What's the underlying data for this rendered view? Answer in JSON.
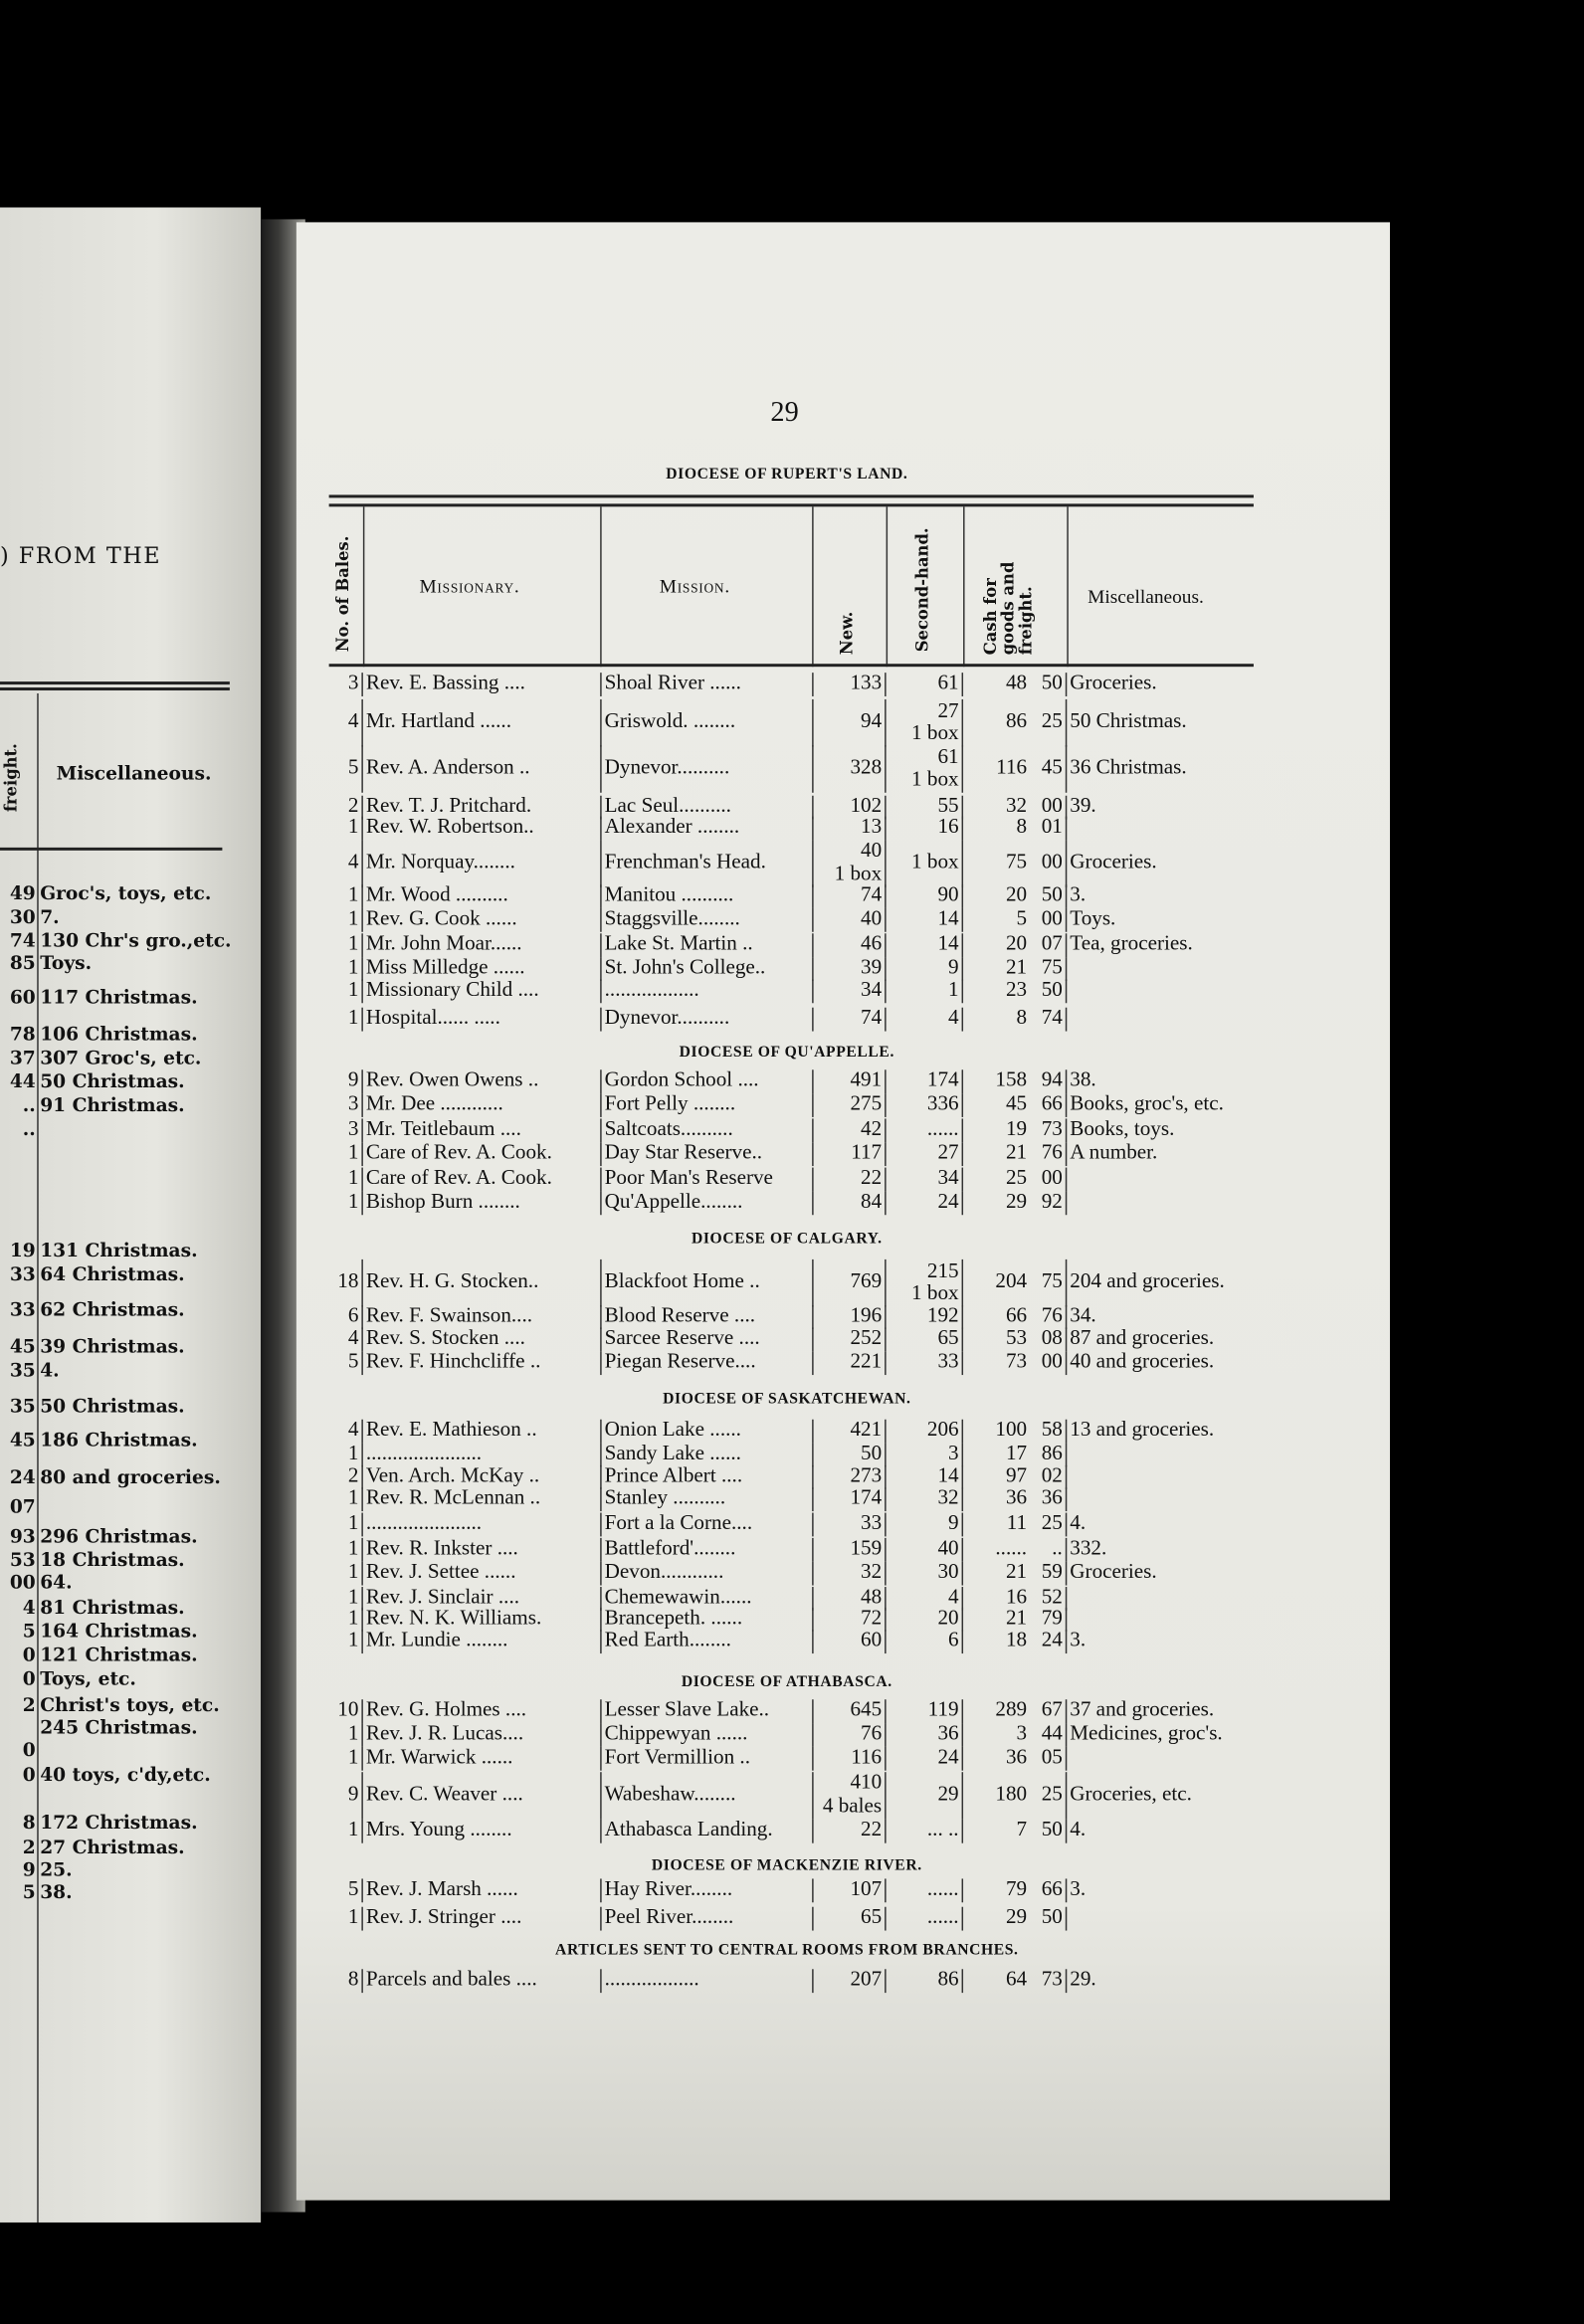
{
  "left_page": {
    "heading_fragment": ") FROM THE",
    "col_freight": "freight.",
    "col_misc": "Miscellaneous.",
    "rows": [
      {
        "v": "49",
        "m": "Groc's, toys, etc."
      },
      {
        "v": "30",
        "m": "7."
      },
      {
        "v": "74",
        "m": "130 Chr's gro.,etc."
      },
      {
        "v": "85",
        "m": "Toys."
      },
      {
        "v": "60",
        "m": "117 Christmas."
      },
      {
        "v": "78",
        "m": "106 Christmas."
      },
      {
        "v": "37",
        "m": "307 Groc's, etc."
      },
      {
        "v": "44",
        "m": "50 Christmas."
      },
      {
        "v": "..",
        "m": "91 Christmas."
      },
      {
        "v": "..",
        "m": ""
      },
      {
        "v": "19",
        "m": "131 Christmas."
      },
      {
        "v": "33",
        "m": "64 Christmas."
      },
      {
        "v": "33",
        "m": "62 Christmas."
      },
      {
        "v": "45",
        "m": "39 Christmas."
      },
      {
        "v": "35",
        "m": "4."
      },
      {
        "v": "35",
        "m": "50 Christmas."
      },
      {
        "v": "45",
        "m": "186 Christmas."
      },
      {
        "v": "24",
        "m": "80 and groceries."
      },
      {
        "v": "07",
        "m": ""
      },
      {
        "v": "93",
        "m": "296 Christmas."
      },
      {
        "v": "53",
        "m": "18 Christmas."
      },
      {
        "v": "00",
        "m": "64."
      },
      {
        "v": "4",
        "m": "81 Christmas."
      },
      {
        "v": "5",
        "m": "164 Christmas."
      },
      {
        "v": "0",
        "m": "121 Christmas."
      },
      {
        "v": "0",
        "m": "Toys, etc."
      },
      {
        "v": "2",
        "m": "Christ's toys, etc."
      },
      {
        "v": "",
        "m": "245 Christmas."
      },
      {
        "v": "0",
        "m": ""
      },
      {
        "v": "0",
        "m": "40 toys, c'dy,etc."
      },
      {
        "v": "8",
        "m": "172 Christmas."
      },
      {
        "v": "2",
        "m": "27 Christmas."
      },
      {
        "v": "9",
        "m": "25."
      },
      {
        "v": "5",
        "m": "38."
      }
    ]
  },
  "right_page": {
    "page_number": "29",
    "columns": {
      "bales": "No. of Bales.",
      "missionary": "Missionary.",
      "mission": "Mission.",
      "new": "New.",
      "second_hand": "Second-hand.",
      "cash": "Cash for goods and freight.",
      "misc": "Miscellaneous."
    },
    "sections": [
      {
        "title": "DIOCESE OF RUPERT'S LAND.",
        "rows": [
          {
            "no": "3",
            "missionary": "Rev. E. Bassing ....",
            "mission": "Shoal River ......",
            "new": "133",
            "second": "61",
            "dollars": "48",
            "cents": "50",
            "misc": "Groceries."
          },
          {
            "no": "4",
            "missionary": "Mr. Hartland ......",
            "mission": "Griswold. ........",
            "new": "94",
            "second": "27\n1 box",
            "dollars": "86",
            "cents": "25",
            "misc": " 50 Christmas."
          },
          {
            "no": "5",
            "missionary": "Rev. A. Anderson ..",
            "mission": "Dynevor..........",
            "new": "328",
            "second": "61\n1 box",
            "dollars": "116",
            "cents": "45",
            "misc": " 36 Christmas."
          },
          {
            "no": "2",
            "missionary": "Rev. T. J. Pritchard.",
            "mission": "Lac Seul..........",
            "new": "102",
            "second": "55",
            "dollars": "32",
            "cents": "00",
            "misc": " 39."
          },
          {
            "no": "1",
            "missionary": "Rev. W. Robertson..",
            "mission": "Alexander ........",
            "new": "13",
            "second": "16",
            "dollars": "8",
            "cents": "01",
            "misc": ""
          },
          {
            "no": "4",
            "missionary": "Mr. Norquay........",
            "mission": "Frenchman's Head.",
            "new": "40\n1 box",
            "second": "1 box",
            "dollars": "75",
            "cents": "00",
            "misc": "Groceries."
          },
          {
            "no": "1",
            "missionary": "Mr. Wood ..........",
            "mission": "Manitou ..........",
            "new": "74",
            "second": "90",
            "dollars": "20",
            "cents": "50",
            "misc": "  3."
          },
          {
            "no": "1",
            "missionary": "Rev. G. Cook ......",
            "mission": "Staggsville........",
            "new": "40",
            "second": "14",
            "dollars": "5",
            "cents": "00",
            "misc": "Toys."
          },
          {
            "no": "1",
            "missionary": "Mr. John Moar......",
            "mission": "Lake St. Martin ..",
            "new": "46",
            "second": "14",
            "dollars": "20",
            "cents": "07",
            "misc": "Tea, groceries."
          },
          {
            "no": "1",
            "missionary": "Miss Milledge ......",
            "mission": "St. John's College..",
            "new": "39",
            "second": "9",
            "dollars": "21",
            "cents": "75",
            "misc": ""
          },
          {
            "no": "1",
            "missionary": "Missionary Child ....",
            "mission": "..................",
            "new": "34",
            "second": "1",
            "dollars": "23",
            "cents": "50",
            "misc": ""
          },
          {
            "no": "1",
            "missionary": "Hospital...... .....",
            "mission": "Dynevor..........",
            "new": "74",
            "second": "4",
            "dollars": "8",
            "cents": "74",
            "misc": ""
          }
        ]
      },
      {
        "title": "DIOCESE OF QU'APPELLE.",
        "rows": [
          {
            "no": "9",
            "missionary": "Rev. Owen Owens ..",
            "mission": "Gordon School ....",
            "new": "491",
            "second": "174",
            "dollars": "158",
            "cents": "94",
            "misc": " 38."
          },
          {
            "no": "3",
            "missionary": "Mr. Dee ............",
            "mission": "Fort Pelly ........",
            "new": "275",
            "second": "336",
            "dollars": "45",
            "cents": "66",
            "misc": "Books, groc's, etc."
          },
          {
            "no": "3",
            "missionary": "Mr. Teitlebaum ....",
            "mission": "Saltcoats..........",
            "new": "42",
            "second": "......",
            "dollars": "19",
            "cents": "73",
            "misc": "Books, toys."
          },
          {
            "no": "1",
            "missionary": "Care of Rev. A. Cook.",
            "mission": "Day Star Reserve..",
            "new": "117",
            "second": "27",
            "dollars": "21",
            "cents": "76",
            "misc": "A number."
          },
          {
            "no": "1",
            "missionary": "Care of Rev. A. Cook.",
            "mission": "Poor Man's Reserve",
            "new": "22",
            "second": "34",
            "dollars": "25",
            "cents": "00",
            "misc": ""
          },
          {
            "no": "1",
            "missionary": "Bishop Burn ........",
            "mission": "Qu'Appelle........",
            "new": "84",
            "second": "24",
            "dollars": "29",
            "cents": "92",
            "misc": ""
          }
        ]
      },
      {
        "title": "DIOCESE OF CALGARY.",
        "rows": [
          {
            "no": "18",
            "missionary": "Rev. H. G. Stocken..",
            "mission": "Blackfoot Home ..",
            "new": "769",
            "second": "215\n1 box",
            "dollars": "204",
            "cents": "75",
            "misc": "204 and groceries."
          },
          {
            "no": "6",
            "missionary": "Rev. F. Swainson....",
            "mission": "Blood Reserve ....",
            "new": "196",
            "second": "192",
            "dollars": "66",
            "cents": "76",
            "misc": " 34."
          },
          {
            "no": "4",
            "missionary": "Rev. S. Stocken ....",
            "mission": "Sarcee Reserve ....",
            "new": "252",
            "second": "65",
            "dollars": "53",
            "cents": "08",
            "misc": " 87 and groceries."
          },
          {
            "no": "5",
            "missionary": "Rev. F. Hinchcliffe ..",
            "mission": "Piegan Reserve....",
            "new": "221",
            "second": "33",
            "dollars": "73",
            "cents": "00",
            "misc": " 40 and groceries."
          }
        ]
      },
      {
        "title": "DIOCESE OF SASKATCHEWAN.",
        "rows": [
          {
            "no": "4",
            "missionary": "Rev. E. Mathieson ..",
            "mission": "Onion Lake ......",
            "new": "421",
            "second": "206",
            "dollars": "100",
            "cents": "58",
            "misc": " 13 and groceries."
          },
          {
            "no": "1",
            "missionary": "......................",
            "mission": "Sandy Lake ......",
            "new": "50",
            "second": "3",
            "dollars": "17",
            "cents": "86",
            "misc": ""
          },
          {
            "no": "2",
            "missionary": "Ven. Arch. McKay ..",
            "mission": "Prince Albert ....",
            "new": "273",
            "second": "14",
            "dollars": "97",
            "cents": "02",
            "misc": ""
          },
          {
            "no": "1",
            "missionary": "Rev. R. McLennan ..",
            "mission": "Stanley ..........",
            "new": "174",
            "second": "32",
            "dollars": "36",
            "cents": "36",
            "misc": ""
          },
          {
            "no": "1",
            "missionary": "......................",
            "mission": "Fort a la Corne....",
            "new": "33",
            "second": "9",
            "dollars": "11",
            "cents": "25",
            "misc": "  4."
          },
          {
            "no": "1",
            "missionary": "Rev. R. Inkster ....",
            "mission": "Battleford'........",
            "new": "159",
            "second": "40",
            "dollars": "......",
            "cents": "..",
            "misc": "332."
          },
          {
            "no": "1",
            "missionary": "Rev. J. Settee ......",
            "mission": "Devon............",
            "new": "32",
            "second": "30",
            "dollars": "21",
            "cents": "59",
            "misc": "Groceries."
          },
          {
            "no": "1",
            "missionary": "Rev. J. Sinclair ....",
            "mission": "Chemewawin......",
            "new": "48",
            "second": "4",
            "dollars": "16",
            "cents": "52",
            "misc": ""
          },
          {
            "no": "1",
            "missionary": "Rev. N. K. Williams.",
            "mission": "Brancepeth. ......",
            "new": "72",
            "second": "20",
            "dollars": "21",
            "cents": "79",
            "misc": ""
          },
          {
            "no": "1",
            "missionary": "Mr. Lundie ........",
            "mission": "Red Earth........",
            "new": "60",
            "second": "6",
            "dollars": "18",
            "cents": "24",
            "misc": "  3."
          }
        ]
      },
      {
        "title": "DIOCESE OF ATHABASCA.",
        "rows": [
          {
            "no": "10",
            "missionary": "Rev. G. Holmes ....",
            "mission": "Lesser Slave Lake..",
            "new": "645",
            "second": "119",
            "dollars": "289",
            "cents": "67",
            "misc": " 37 and groceries."
          },
          {
            "no": "1",
            "missionary": "Rev. J. R. Lucas....",
            "mission": "Chippewyan ......",
            "new": "76",
            "second": "36",
            "dollars": "3",
            "cents": "44",
            "misc": "Medicines, groc's."
          },
          {
            "no": "1",
            "missionary": "Mr. Warwick ......",
            "mission": "Fort Vermillion ..",
            "new": "116",
            "second": "24",
            "dollars": "36",
            "cents": "05",
            "misc": ""
          },
          {
            "no": "9",
            "missionary": "Rev. C. Weaver ....",
            "mission": "Wabeshaw........",
            "new": "410\n4 bales",
            "second": "29",
            "dollars": "180",
            "cents": "25",
            "misc": "Groceries, etc."
          },
          {
            "no": "1",
            "missionary": "Mrs. Young ........",
            "mission": "Athabasca Landing.",
            "new": "22",
            "second": "... ..",
            "dollars": "7",
            "cents": "50",
            "misc": "  4."
          }
        ]
      },
      {
        "title": "DIOCESE OF MACKENZIE RIVER.",
        "rows": [
          {
            "no": "5",
            "missionary": "Rev. J. Marsh ......",
            "mission": "Hay River........",
            "new": "107",
            "second": "......",
            "dollars": "79",
            "cents": "66",
            "misc": "  3."
          },
          {
            "no": "1",
            "missionary": "Rev. J. Stringer ....",
            "mission": "Peel River........",
            "new": "65",
            "second": "......",
            "dollars": "29",
            "cents": "50",
            "misc": ""
          }
        ]
      },
      {
        "title": "ARTICLES SENT TO CENTRAL ROOMS FROM BRANCHES.",
        "rows": [
          {
            "no": "8",
            "missionary": "Parcels and bales ....",
            "mission": "..................",
            "new": "207",
            "second": "86",
            "dollars": "64",
            "cents": "73",
            "misc": "29."
          }
        ]
      }
    ]
  }
}
